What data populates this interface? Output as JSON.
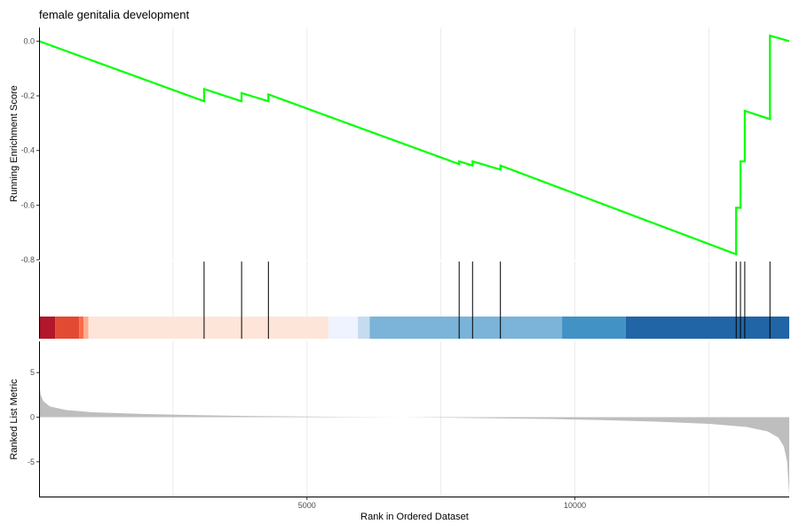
{
  "chart_data": {
    "type": "line",
    "title": "female genitalia development",
    "xlabel": "Rank in Ordered Dataset",
    "x_ticks": [
      5000,
      10000
    ],
    "x_tick_labels": [
      "5000",
      "10000"
    ],
    "xlim": [
      0,
      14000
    ],
    "running_score": {
      "ylabel": "Running Enrichment Score",
      "ylim": [
        -0.8,
        0.05
      ],
      "y_ticks": [
        0.0,
        -0.2,
        -0.4,
        -0.6,
        -0.8
      ],
      "y_tick_labels": [
        "0.0",
        "-0.2",
        "-0.4",
        "-0.6",
        "-0.8"
      ],
      "line_color": "#00ff00",
      "series": [
        {
          "x": 0,
          "y": 0.0
        },
        {
          "x": 3080,
          "y": -0.22
        },
        {
          "x": 3080,
          "y": -0.175
        },
        {
          "x": 3780,
          "y": -0.22
        },
        {
          "x": 3780,
          "y": -0.19
        },
        {
          "x": 4280,
          "y": -0.22
        },
        {
          "x": 4280,
          "y": -0.195
        },
        {
          "x": 7840,
          "y": -0.45
        },
        {
          "x": 7840,
          "y": -0.44
        },
        {
          "x": 8090,
          "y": -0.455
        },
        {
          "x": 8090,
          "y": -0.44
        },
        {
          "x": 8610,
          "y": -0.47
        },
        {
          "x": 8610,
          "y": -0.455
        },
        {
          "x": 13010,
          "y": -0.78
        },
        {
          "x": 13010,
          "y": -0.61
        },
        {
          "x": 13090,
          "y": -0.61
        },
        {
          "x": 13090,
          "y": -0.44
        },
        {
          "x": 13170,
          "y": -0.44
        },
        {
          "x": 13170,
          "y": -0.255
        },
        {
          "x": 13640,
          "y": -0.285
        },
        {
          "x": 13640,
          "y": 0.02
        },
        {
          "x": 14000,
          "y": 0.0
        }
      ]
    },
    "hits": [
      3080,
      3780,
      4280,
      7840,
      8090,
      8610,
      13010,
      13090,
      13170,
      13640
    ],
    "color_bar": [
      {
        "from": 0,
        "to": 300,
        "color": "#b2182b"
      },
      {
        "from": 300,
        "to": 750,
        "color": "#e34a33"
      },
      {
        "from": 750,
        "to": 830,
        "color": "#fb6a4a"
      },
      {
        "from": 830,
        "to": 920,
        "color": "#fcae91"
      },
      {
        "from": 920,
        "to": 5400,
        "color": "#fee5d9"
      },
      {
        "from": 5400,
        "to": 5950,
        "color": "#eff3ff"
      },
      {
        "from": 5950,
        "to": 6170,
        "color": "#c6dbef"
      },
      {
        "from": 6170,
        "to": 9760,
        "color": "#7bb4d8"
      },
      {
        "from": 9760,
        "to": 10950,
        "color": "#4292c6"
      },
      {
        "from": 10950,
        "to": 14000,
        "color": "#2165a6"
      }
    ],
    "ranked_metric": {
      "ylabel": "Ranked List Metric",
      "ylim": [
        -9,
        8.5
      ],
      "y_ticks": [
        5,
        0,
        -5
      ],
      "y_tick_labels": [
        "5",
        "0",
        "-5"
      ],
      "fill_color": "#bebebe",
      "profile": [
        {
          "x": 0,
          "y": 3.8
        },
        {
          "x": 30,
          "y": 2.5
        },
        {
          "x": 80,
          "y": 1.8
        },
        {
          "x": 200,
          "y": 1.2
        },
        {
          "x": 500,
          "y": 0.8
        },
        {
          "x": 1000,
          "y": 0.55
        },
        {
          "x": 2000,
          "y": 0.35
        },
        {
          "x": 3000,
          "y": 0.22
        },
        {
          "x": 4000,
          "y": 0.13
        },
        {
          "x": 5000,
          "y": 0.07
        },
        {
          "x": 6000,
          "y": 0.02
        },
        {
          "x": 6800,
          "y": 0.0
        },
        {
          "x": 7500,
          "y": -0.05
        },
        {
          "x": 8500,
          "y": -0.12
        },
        {
          "x": 9500,
          "y": -0.2
        },
        {
          "x": 10500,
          "y": -0.32
        },
        {
          "x": 11500,
          "y": -0.5
        },
        {
          "x": 12500,
          "y": -0.75
        },
        {
          "x": 13200,
          "y": -1.1
        },
        {
          "x": 13600,
          "y": -1.6
        },
        {
          "x": 13800,
          "y": -2.3
        },
        {
          "x": 13900,
          "y": -3.3
        },
        {
          "x": 13960,
          "y": -5.0
        },
        {
          "x": 14000,
          "y": -8.7
        }
      ]
    }
  }
}
